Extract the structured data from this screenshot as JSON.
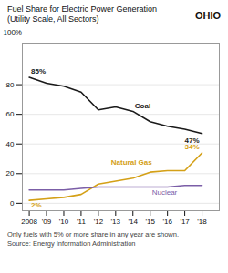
{
  "chart_data": {
    "type": "line",
    "title": "Fuel Share for Electric Power Generation",
    "subtitle": "(Utility Scale, All Sectors)",
    "x": [
      2008,
      2009,
      2010,
      2011,
      2012,
      2013,
      2014,
      2015,
      2016,
      2017,
      2018
    ],
    "series": [
      {
        "name": "Coal",
        "color": "#1a1a1a",
        "values": [
          85,
          81,
          79,
          75,
          63,
          65,
          62,
          55,
          52,
          50,
          47
        ]
      },
      {
        "name": "Natural Gas",
        "color": "#d4a017",
        "values": [
          2,
          3,
          4,
          6,
          13,
          15,
          17,
          21,
          22,
          22,
          34
        ]
      },
      {
        "name": "Nuclear",
        "color": "#7b5ea7",
        "values": [
          9,
          9,
          9,
          10,
          11,
          11,
          11,
          11,
          11,
          12,
          12
        ]
      }
    ],
    "xlim": [
      2007.6,
      2019.0
    ],
    "xticks": [
      2008,
      {
        "value": 2009,
        "label": "'09"
      },
      {
        "value": 2010,
        "label": "'10"
      },
      {
        "value": 2011,
        "label": "'11"
      },
      {
        "value": 2012,
        "label": "'12"
      },
      {
        "value": 2013,
        "label": "'13"
      },
      {
        "value": 2014,
        "label": "'14"
      },
      {
        "value": 2015,
        "label": "'15"
      },
      {
        "value": 2016,
        "label": "'16"
      },
      {
        "value": 2017,
        "label": "'17"
      },
      {
        "value": 2018,
        "label": "'18"
      }
    ],
    "ylim": [
      -5,
      108
    ],
    "yticks": [
      0,
      20,
      40,
      60,
      80
    ],
    "ylabel": "100%",
    "grid": "y",
    "annotations": [
      {
        "text": "OHIO"
      },
      {
        "text": "85%",
        "series": "Coal",
        "x": 2008,
        "y": 85
      },
      {
        "text": "47%",
        "series": "Coal",
        "x": 2018,
        "y": 47
      },
      {
        "text": "2%",
        "series": "Natural Gas",
        "x": 2008,
        "y": 2
      },
      {
        "text": "34%",
        "series": "Natural Gas",
        "x": 2018,
        "y": 34
      }
    ],
    "footnotes": [
      "Only fuels with 5% or more share in any year are shown.",
      "Source:  Energy Information Administration"
    ]
  }
}
